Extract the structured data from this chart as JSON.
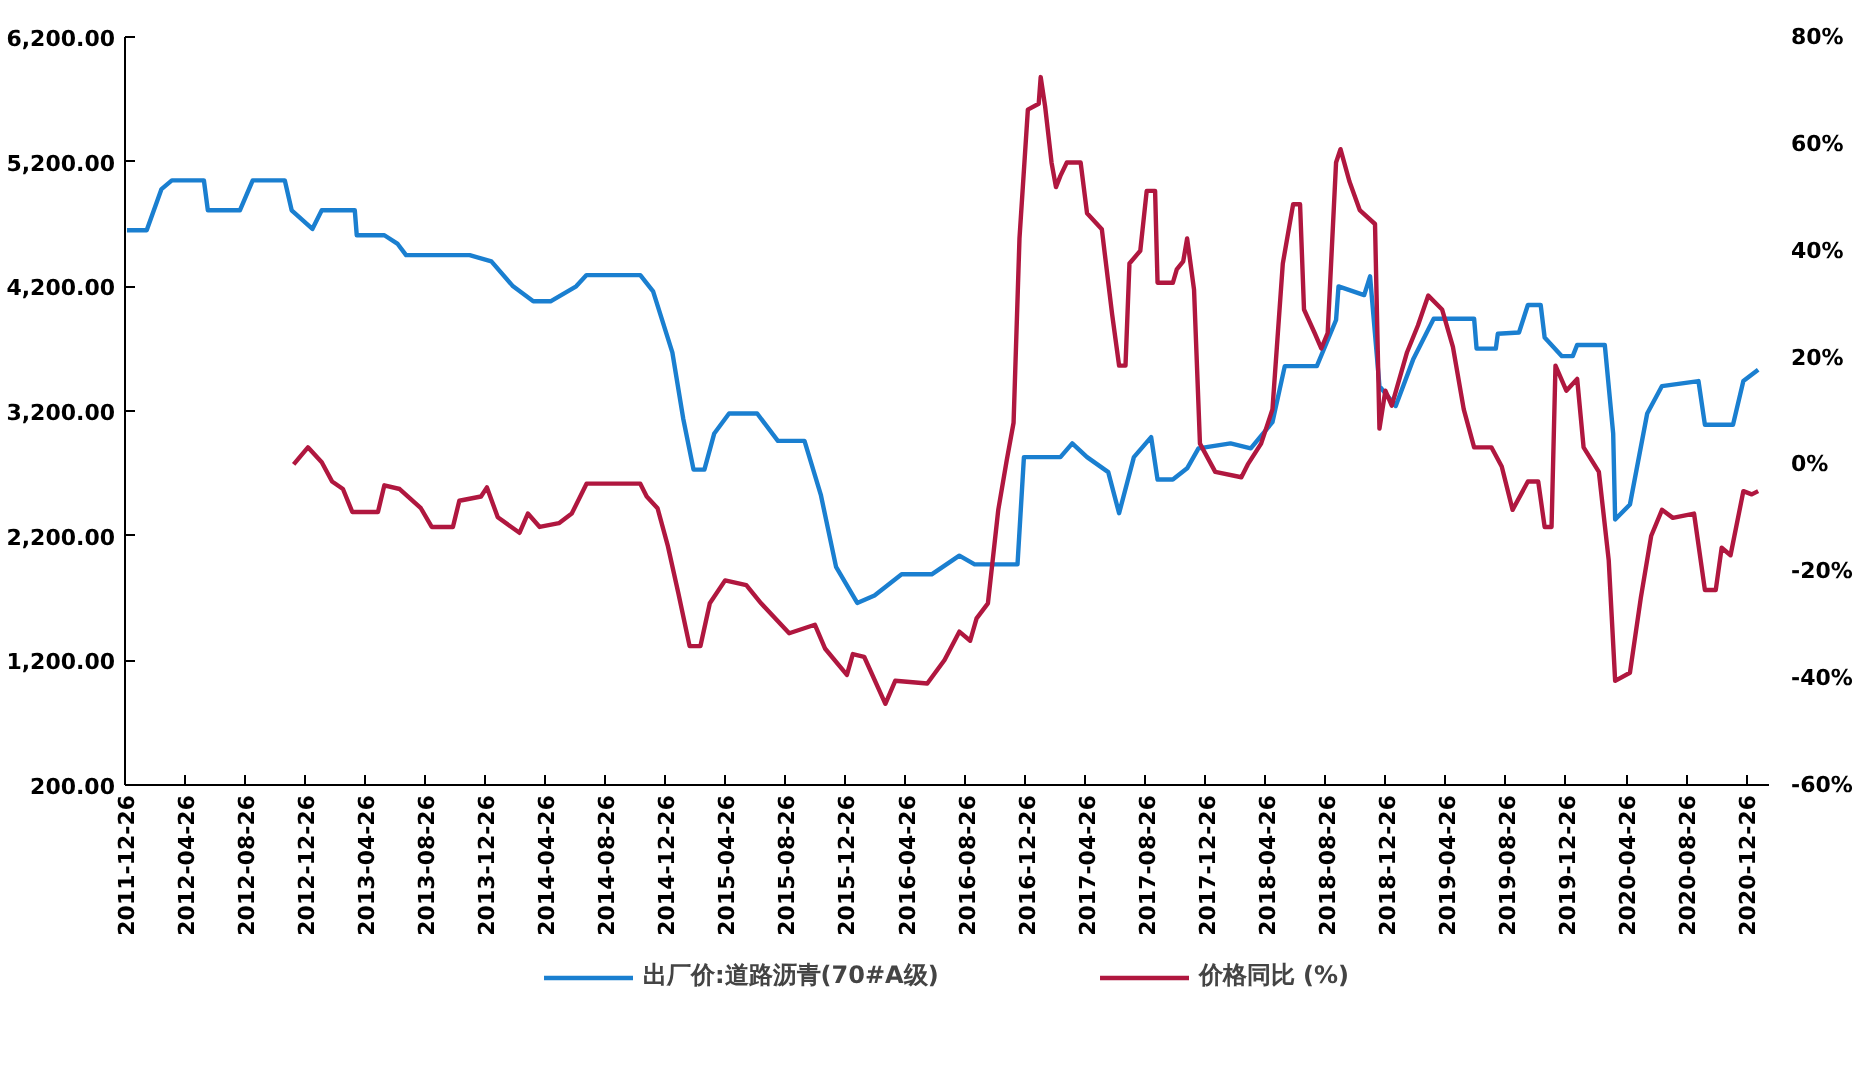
{
  "chart_data": {
    "type": "line",
    "xlim": [
      "2011-12-26",
      "2021-02-10"
    ],
    "xticks": [
      "2011-12-26",
      "2012-04-26",
      "2012-08-26",
      "2012-12-26",
      "2013-04-26",
      "2013-08-26",
      "2013-12-26",
      "2014-04-26",
      "2014-08-26",
      "2014-12-26",
      "2015-04-26",
      "2015-08-26",
      "2015-12-26",
      "2016-04-26",
      "2016-08-26",
      "2016-12-26",
      "2017-04-26",
      "2017-08-26",
      "2017-12-26",
      "2018-04-26",
      "2018-08-26",
      "2018-12-26",
      "2019-04-26",
      "2019-08-26",
      "2019-12-26",
      "2020-04-26",
      "2020-08-26",
      "2020-12-26"
    ],
    "ylim": [
      200,
      6200
    ],
    "yticks": [
      {
        "value": 200,
        "label": "200.00"
      },
      {
        "value": 1200,
        "label": "1,200.00"
      },
      {
        "value": 2200,
        "label": "2,200.00"
      },
      {
        "value": 3200,
        "label": "3,200.00"
      },
      {
        "value": 4200,
        "label": "4,200.00"
      },
      {
        "value": 5200,
        "label": "5,200.00"
      },
      {
        "value": 6200,
        "label": "6,200.00"
      }
    ],
    "y2lim": [
      -60,
      80
    ],
    "y2ticks": [
      {
        "value": -60,
        "label": "-60%"
      },
      {
        "value": -40,
        "label": "-40%"
      },
      {
        "value": -20,
        "label": "-20%"
      },
      {
        "value": 0,
        "label": "0%"
      },
      {
        "value": 20,
        "label": "20%"
      },
      {
        "value": 40,
        "label": "40%"
      },
      {
        "value": 60,
        "label": "60%"
      },
      {
        "value": 80,
        "label": "80%"
      }
    ],
    "grid": false,
    "legend": "bottom",
    "marker": "none",
    "line_style": "solid",
    "series": [
      {
        "name": "出厂价:道路沥青(70#A级)",
        "color": "#1a7fd0",
        "x": [
          "2011-12-30",
          "2012-02-08",
          "2012-03-09",
          "2012-03-30",
          "2012-06-03",
          "2012-06-11",
          "2012-08-15",
          "2012-09-10",
          "2012-11-14",
          "2012-11-28",
          "2013-01-09",
          "2013-01-28",
          "2013-04-05",
          "2013-04-09",
          "2013-06-04",
          "2013-07-01",
          "2013-07-18",
          "2013-11-24",
          "2014-01-07",
          "2014-02-20",
          "2014-04-02",
          "2014-05-07",
          "2014-06-28",
          "2014-07-19",
          "2014-11-05",
          "2014-12-01",
          "2015-01-09",
          "2015-01-31",
          "2015-02-21",
          "2015-03-15",
          "2015-04-04",
          "2015-05-04",
          "2015-06-30",
          "2015-08-11",
          "2015-10-04",
          "2015-11-06",
          "2015-12-07",
          "2016-01-19",
          "2016-02-23",
          "2016-04-18",
          "2016-06-18",
          "2016-08-13",
          "2016-09-13",
          "2016-12-09",
          "2016-12-22",
          "2017-03-06",
          "2017-03-30",
          "2017-04-29",
          "2017-06-11",
          "2017-07-03",
          "2017-08-02",
          "2017-09-06",
          "2017-09-19",
          "2017-10-20",
          "2017-11-18",
          "2017-12-11",
          "2018-02-14",
          "2018-03-27",
          "2018-05-10",
          "2018-06-04",
          "2018-08-08",
          "2018-09-16",
          "2018-09-21",
          "2018-11-12",
          "2018-11-24",
          "2018-12-13",
          "2019-01-15",
          "2019-02-20",
          "2019-04-02",
          "2019-06-23",
          "2019-06-28",
          "2019-08-06",
          "2019-08-10",
          "2019-09-22",
          "2019-10-10",
          "2019-11-05",
          "2019-11-13",
          "2019-12-18",
          "2020-01-09",
          "2020-01-18",
          "2020-03-14",
          "2020-03-31",
          "2020-04-04",
          "2020-05-04",
          "2020-06-08",
          "2020-07-08",
          "2020-09-20",
          "2020-10-03",
          "2020-11-29",
          "2020-12-20",
          "2021-01-19"
        ],
        "values": [
          4650,
          4650,
          4980,
          5050,
          5050,
          4810,
          4810,
          5050,
          5050,
          4810,
          4660,
          4810,
          4810,
          4610,
          4610,
          4540,
          4450,
          4450,
          4400,
          4200,
          4080,
          4080,
          4200,
          4290,
          4290,
          4160,
          3670,
          3140,
          2730,
          2730,
          3020,
          3180,
          3180,
          2960,
          2960,
          2530,
          1950,
          1660,
          1720,
          1890,
          1890,
          2040,
          1970,
          1970,
          2830,
          2830,
          2940,
          2830,
          2710,
          2380,
          2830,
          2990,
          2650,
          2650,
          2740,
          2900,
          2940,
          2900,
          3110,
          3560,
          3560,
          3930,
          4200,
          4130,
          4280,
          3400,
          3240,
          3620,
          3940,
          3940,
          3700,
          3700,
          3820,
          3830,
          4050,
          4050,
          3790,
          3640,
          3640,
          3730,
          3730,
          3020,
          2330,
          2450,
          3180,
          3400,
          3440,
          3090,
          3090,
          3440,
          3530
        ]
      },
      {
        "name": "价格同比 (%)",
        "color": "#b0173f",
        "axis": "y2",
        "x": [
          "2012-12-02",
          "2012-12-31",
          "2013-01-28",
          "2013-02-18",
          "2013-03-12",
          "2013-03-31",
          "2013-05-22",
          "2013-06-04",
          "2013-07-05",
          "2013-08-17",
          "2013-09-08",
          "2013-10-21",
          "2013-11-03",
          "2013-12-17",
          "2013-12-29",
          "2014-01-20",
          "2014-03-05",
          "2014-03-22",
          "2014-04-15",
          "2014-05-24",
          "2014-06-19",
          "2014-07-19",
          "2014-11-05",
          "2014-11-18",
          "2014-12-10",
          "2014-12-31",
          "2015-01-21",
          "2015-02-13",
          "2015-03-07",
          "2015-03-26",
          "2015-04-26",
          "2015-06-08",
          "2015-07-08",
          "2015-09-03",
          "2015-10-25",
          "2015-11-15",
          "2015-12-29",
          "2016-01-10",
          "2016-02-02",
          "2016-03-16",
          "2016-04-05",
          "2016-06-09",
          "2016-07-14",
          "2016-08-13",
          "2016-09-04",
          "2016-09-17",
          "2016-10-10",
          "2016-10-31",
          "2016-11-17",
          "2016-12-01",
          "2016-12-13",
          "2016-12-30",
          "2017-01-21",
          "2017-01-25",
          "2017-02-03",
          "2017-02-16",
          "2017-02-25",
          "2017-03-06",
          "2017-03-19",
          "2017-04-16",
          "2017-04-29",
          "2017-05-29",
          "2017-06-19",
          "2017-07-03",
          "2017-07-16",
          "2017-07-24",
          "2017-08-15",
          "2017-08-28",
          "2017-09-14",
          "2017-09-19",
          "2017-10-20",
          "2017-10-28",
          "2017-11-10",
          "2017-11-18",
          "2017-12-02",
          "2017-12-14",
          "2018-01-14",
          "2018-03-08",
          "2018-03-21",
          "2018-04-17",
          "2018-05-10",
          "2018-05-31",
          "2018-06-21",
          "2018-07-05",
          "2018-07-13",
          "2018-08-04",
          "2018-08-17",
          "2018-08-30",
          "2018-09-16",
          "2018-09-25",
          "2018-10-13",
          "2018-11-03",
          "2018-12-04",
          "2018-12-13",
          "2018-12-25",
          "2019-01-07",
          "2019-02-07",
          "2019-03-01",
          "2019-03-22",
          "2019-04-19",
          "2019-05-11",
          "2019-06-02",
          "2019-06-23",
          "2019-07-28",
          "2019-08-18",
          "2019-09-09",
          "2019-10-10",
          "2019-10-31",
          "2019-11-13",
          "2019-11-27",
          "2019-12-05",
          "2019-12-27",
          "2020-01-18",
          "2020-01-31",
          "2020-03-02",
          "2020-03-22",
          "2020-04-04",
          "2020-05-04",
          "2020-05-26",
          "2020-06-16",
          "2020-07-08",
          "2020-07-30",
          "2020-09-11",
          "2020-10-03",
          "2020-10-25",
          "2020-11-06",
          "2020-11-24",
          "2020-12-20",
          "2021-01-06",
          "2021-01-19"
        ],
        "values": [
          0,
          3.2,
          0.4,
          -3.2,
          -4.6,
          -8.9,
          -8.9,
          -3.9,
          -4.6,
          -8.2,
          -11.7,
          -11.7,
          -6.8,
          -6,
          -4.3,
          -9.9,
          -12.8,
          -9.2,
          -11.7,
          -11,
          -9.2,
          -3.6,
          -3.6,
          -6,
          -8.2,
          -15.3,
          -24,
          -34,
          -34,
          -26,
          -21.7,
          -22.6,
          -26,
          -31.6,
          -30,
          -34.5,
          -39.4,
          -35.5,
          -36,
          -44.8,
          -40.5,
          -41,
          -36.6,
          -31.3,
          -33,
          -28.8,
          -26,
          -8.5,
          0.7,
          7.8,
          42.3,
          66.4,
          67.5,
          72.5,
          67,
          56.5,
          51.9,
          54,
          56.5,
          56.5,
          47,
          44,
          28,
          18.5,
          18.5,
          37.6,
          40,
          51.2,
          51.2,
          34,
          34,
          36.5,
          38,
          42.3,
          32.7,
          3.9,
          -1.4,
          -2.4,
          0,
          3.9,
          10.3,
          37.6,
          48.7,
          48.7,
          29,
          24.5,
          21.7,
          24.6,
          56.5,
          59,
          53,
          47.6,
          45,
          6.7,
          13.8,
          11,
          21,
          26,
          31.6,
          29,
          22,
          10.3,
          3.2,
          3.2,
          -0.4,
          -8.5,
          -3.2,
          -3.2,
          -11.7,
          -11.7,
          18.5,
          13.8,
          16,
          3.2,
          -1.4,
          -18,
          -40.5,
          -39,
          -25,
          -13.4,
          -8.5,
          -10,
          -9.2,
          -23.5,
          -23.5,
          -15.6,
          -17,
          -5,
          -5.6,
          -5
        ]
      }
    ]
  }
}
